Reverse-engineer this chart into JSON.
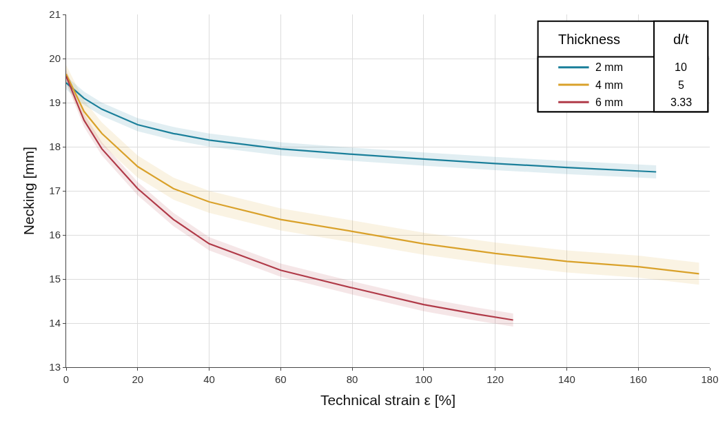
{
  "chart_data": {
    "type": "line",
    "xlabel": "Technical strain ε [%]",
    "ylabel": "Necking [mm]",
    "xlim": [
      0,
      180
    ],
    "xticks": [
      0,
      20,
      40,
      60,
      80,
      100,
      120,
      140,
      160,
      180
    ],
    "ylim": [
      13,
      21
    ],
    "yticks": [
      13,
      14,
      15,
      16,
      17,
      18,
      19,
      20,
      21
    ],
    "grid": true,
    "legend": "top right",
    "legend_title": "Thickness",
    "line_style": "solid",
    "annotations": [
      "d/t",
      "10",
      "5",
      "3.33"
    ],
    "series": [
      {
        "name": "2 mm",
        "color": "#1a7f9a",
        "x": [
          0,
          5,
          10,
          20,
          30,
          40,
          60,
          80,
          100,
          120,
          140,
          165
        ],
        "values": [
          19.45,
          19.1,
          18.85,
          18.5,
          18.3,
          18.15,
          17.95,
          17.83,
          17.72,
          17.62,
          17.53,
          17.43
        ],
        "lower": [
          19.3,
          18.95,
          18.7,
          18.35,
          18.15,
          18.0,
          17.8,
          17.68,
          17.57,
          17.47,
          17.38,
          17.28
        ],
        "upper": [
          19.6,
          19.25,
          19.0,
          18.65,
          18.45,
          18.3,
          18.1,
          17.98,
          17.87,
          17.77,
          17.68,
          17.58
        ]
      },
      {
        "name": "4 mm",
        "color": "#d9a12a",
        "x": [
          0,
          5,
          10,
          20,
          30,
          40,
          60,
          80,
          100,
          120,
          140,
          160,
          177
        ],
        "values": [
          19.65,
          18.8,
          18.3,
          17.55,
          17.05,
          16.75,
          16.35,
          16.08,
          15.8,
          15.58,
          15.4,
          15.28,
          15.12
        ],
        "lower": [
          19.45,
          18.55,
          18.05,
          17.3,
          16.8,
          16.5,
          16.1,
          15.83,
          15.55,
          15.33,
          15.15,
          15.03,
          14.87
        ],
        "upper": [
          19.85,
          19.05,
          18.55,
          17.8,
          17.3,
          17.0,
          16.6,
          16.33,
          16.05,
          15.83,
          15.65,
          15.53,
          15.37
        ]
      },
      {
        "name": "6 mm",
        "color": "#b03a48",
        "x": [
          0,
          5,
          10,
          20,
          30,
          40,
          60,
          80,
          100,
          115,
          125
        ],
        "values": [
          19.6,
          18.6,
          17.95,
          17.05,
          16.35,
          15.8,
          15.2,
          14.8,
          14.42,
          14.2,
          14.07
        ],
        "lower": [
          19.45,
          18.45,
          17.8,
          16.9,
          16.2,
          15.65,
          15.05,
          14.65,
          14.27,
          14.05,
          13.92
        ],
        "upper": [
          19.75,
          18.75,
          18.1,
          17.2,
          16.5,
          15.95,
          15.35,
          14.95,
          14.57,
          14.35,
          14.22
        ]
      }
    ]
  }
}
